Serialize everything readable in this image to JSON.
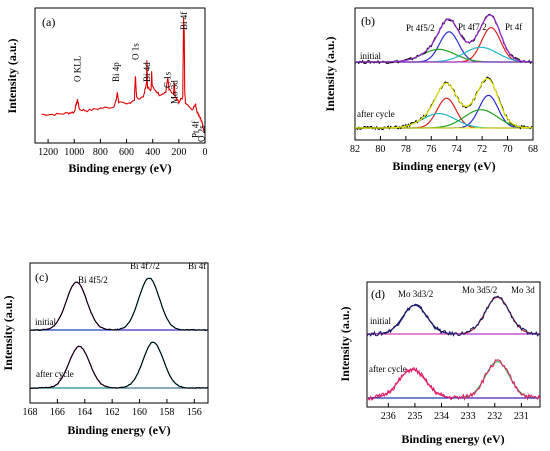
{
  "chart_data": [
    {
      "type": "line",
      "panel_letter": "(a)",
      "xlabel": "Binding energy (eV)",
      "ylabel": "Intensity (a.u.)",
      "xlim": [
        1300,
        0
      ],
      "xticks": [
        "1200",
        "1000",
        "800",
        "600",
        "400",
        "200",
        "0"
      ],
      "tick_values": [
        1200,
        1000,
        800,
        600,
        400,
        200,
        0
      ],
      "series": [
        {
          "color": "#e00000",
          "x": [
            1250,
            1150,
            1050,
            1000,
            985,
            975,
            960,
            900,
            800,
            700,
            680,
            670,
            660,
            600,
            540,
            532,
            526,
            520,
            470,
            448,
            444,
            440,
            412,
            408,
            404,
            350,
            300,
            285,
            275,
            240,
            235,
            228,
            200,
            170,
            164,
            159,
            155,
            150,
            100,
            72,
            60,
            40,
            25,
            15,
            5
          ],
          "y": [
            0.2,
            0.2,
            0.21,
            0.22,
            0.28,
            0.32,
            0.24,
            0.23,
            0.25,
            0.26,
            0.31,
            0.38,
            0.3,
            0.28,
            0.32,
            0.52,
            0.38,
            0.33,
            0.34,
            0.46,
            0.64,
            0.42,
            0.4,
            0.56,
            0.43,
            0.36,
            0.38,
            0.5,
            0.4,
            0.36,
            0.46,
            0.34,
            0.3,
            0.34,
            0.98,
            0.88,
            0.4,
            0.3,
            0.24,
            0.28,
            0.22,
            0.18,
            0.14,
            0.1,
            0.06
          ]
        }
      ],
      "annotations": [
        {
          "text": "O KLL",
          "x": 975
        },
        {
          "text": "Bi 4p",
          "x": 680
        },
        {
          "text": "O 1s",
          "x": 532
        },
        {
          "text": "Bi 4d",
          "x": 444
        },
        {
          "text": "C 1s",
          "x": 285
        },
        {
          "text": "Mo 3d",
          "x": 232
        },
        {
          "text": "Bi 4f",
          "x": 160
        },
        {
          "text": "Pt 4f",
          "x": 72
        },
        {
          "text": "O 2s",
          "x": 25
        }
      ]
    },
    {
      "type": "line",
      "panel_letter": "(b)",
      "xlabel": "Binding energy (eV)",
      "ylabel": "Intensity (a.u.)",
      "xlim": [
        82,
        68
      ],
      "xticks": [
        "82",
        "80",
        "78",
        "76",
        "74",
        "72",
        "70",
        "68"
      ],
      "tick_values": [
        82,
        80,
        78,
        76,
        74,
        72,
        70,
        68
      ],
      "group_labels": [
        "initial",
        "after cycle"
      ],
      "peak_labels": [
        "Pt 4f5/2",
        "Pt 4f7/2",
        "Pt 4f"
      ],
      "components": [
        {
          "color": "#2b2bd6",
          "center": 74.6,
          "width": 0.75
        },
        {
          "color": "#e02020",
          "center": 71.3,
          "width": 0.75
        },
        {
          "color": "#20a020",
          "center": 75.4,
          "width": 1.3
        },
        {
          "color": "#20b8c8",
          "center": 72.1,
          "width": 1.3
        }
      ]
    },
    {
      "type": "line",
      "panel_letter": "(c)",
      "xlabel": "Binding energy (eV)",
      "ylabel": "Intensity (a.u.)",
      "xlim": [
        168,
        155
      ],
      "xticks": [
        "168",
        "166",
        "164",
        "162",
        "160",
        "158",
        "156"
      ],
      "tick_values": [
        168,
        166,
        164,
        162,
        160,
        158,
        156
      ],
      "group_labels": [
        "initial",
        "after cycle"
      ],
      "peak_labels": [
        "Bi 4f5/2",
        "Bi 4f7/2",
        "Bi 4f"
      ],
      "components": [
        {
          "color": "#e040e0",
          "center": 164.5,
          "width": 0.75
        },
        {
          "color": "#20c8d8",
          "center": 159.2,
          "width": 0.75
        }
      ],
      "baseline_color": "#2020c0"
    },
    {
      "type": "line",
      "panel_letter": "(d)",
      "xlabel": "Binding energy (eV)",
      "ylabel": "Intensity (a.u.)",
      "xlim": [
        236.8,
        230.3
      ],
      "xticks": [
        "236",
        "235",
        "234",
        "233",
        "232",
        "231"
      ],
      "tick_values": [
        236,
        235,
        234,
        233,
        232,
        231
      ],
      "group_labels": [
        "initial",
        "after cycle"
      ],
      "peak_labels": [
        "Mo 3d3/2",
        "Mo 3d5/2",
        "Mo 3d"
      ],
      "initial_components": [
        {
          "color": "#1a1a6a",
          "center": 235.0,
          "width": 0.45
        },
        {
          "color": "#c02020",
          "center": 231.9,
          "width": 0.45
        }
      ],
      "after_components": [
        {
          "color": "#e0206a",
          "center": 235.1,
          "width": 0.5
        },
        {
          "color": "#40b040",
          "center": 231.9,
          "width": 0.45
        }
      ],
      "baseline_color": "#e040e0"
    }
  ]
}
